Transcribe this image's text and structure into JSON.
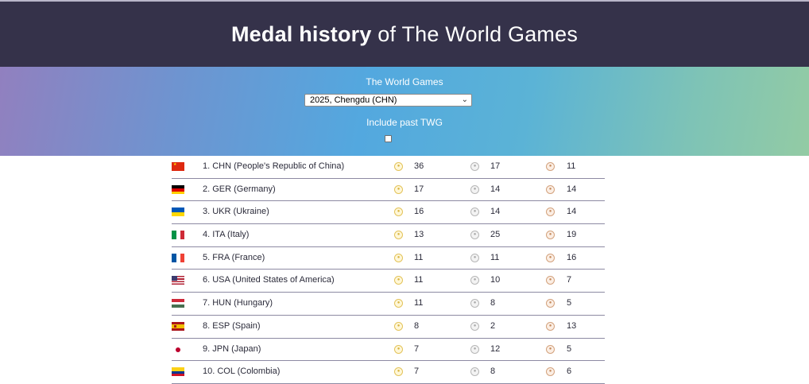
{
  "header": {
    "title_bold": "Medal history",
    "title_rest": " of The World Games"
  },
  "filters": {
    "games_label": "The World Games",
    "selected_games": "2025, Chengdu (CHN)",
    "past_label": "Include past TWG",
    "include_past_checked": false
  },
  "medal_icons": {
    "gold": "gold-medal-icon",
    "silver": "silver-medal-icon",
    "bronze": "bronze-medal-icon"
  },
  "rows": [
    {
      "country": "1. CHN (People's Republic of China)",
      "flag": "CHN",
      "gold": "36",
      "silver": "17",
      "bronze": "11"
    },
    {
      "country": "2. GER (Germany)",
      "flag": "GER",
      "gold": "17",
      "silver": "14",
      "bronze": "14"
    },
    {
      "country": "3. UKR (Ukraine)",
      "flag": "UKR",
      "gold": "16",
      "silver": "14",
      "bronze": "14"
    },
    {
      "country": "4. ITA (Italy)",
      "flag": "ITA",
      "gold": "13",
      "silver": "25",
      "bronze": "19"
    },
    {
      "country": "5. FRA (France)",
      "flag": "FRA",
      "gold": "11",
      "silver": "11",
      "bronze": "16"
    },
    {
      "country": "6. USA (United States of America)",
      "flag": "USA",
      "gold": "11",
      "silver": "10",
      "bronze": "7"
    },
    {
      "country": "7. HUN (Hungary)",
      "flag": "HUN",
      "gold": "11",
      "silver": "8",
      "bronze": "5"
    },
    {
      "country": "8. ESP (Spain)",
      "flag": "ESP",
      "gold": "8",
      "silver": "2",
      "bronze": "13"
    },
    {
      "country": "9. JPN (Japan)",
      "flag": "JPN",
      "gold": "7",
      "silver": "12",
      "bronze": "5"
    },
    {
      "country": "10. COL (Colombia)",
      "flag": "COL",
      "gold": "7",
      "silver": "8",
      "bronze": "6"
    }
  ]
}
